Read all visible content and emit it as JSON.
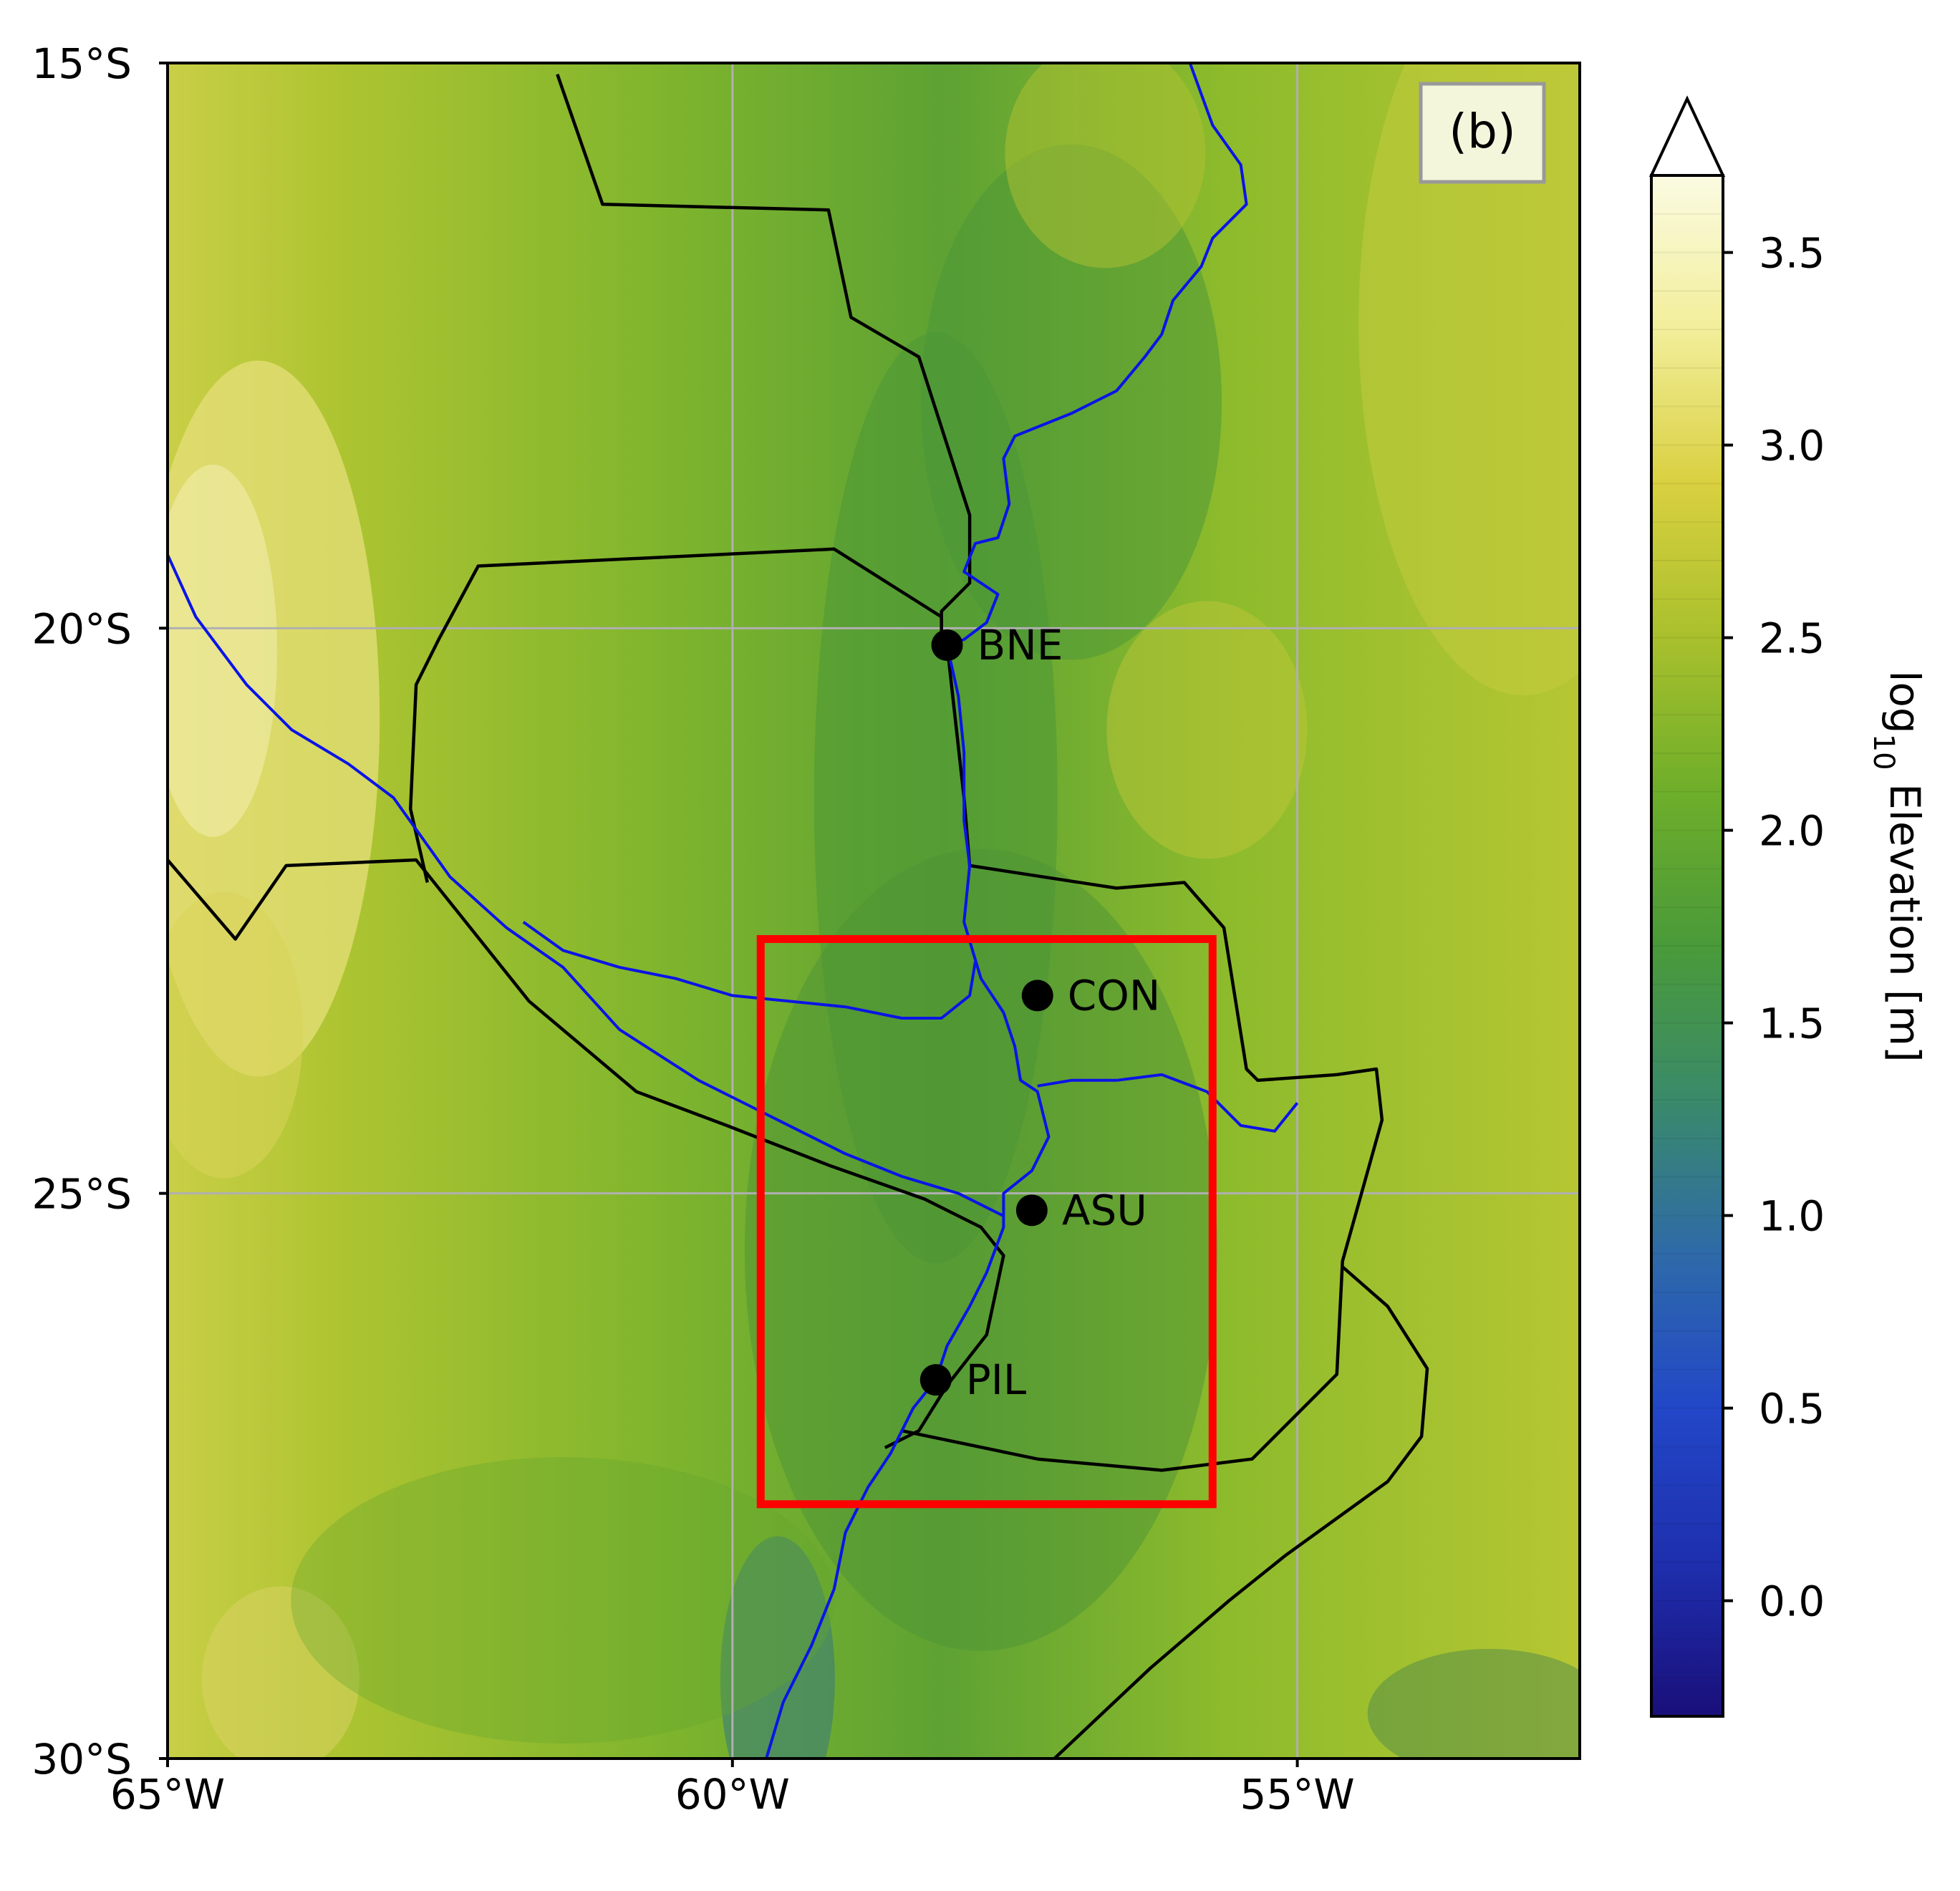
{
  "panel_label": "(b)",
  "map": {
    "lon_range": [
      -65,
      -52.5
    ],
    "lat_range": [
      -30,
      -15
    ],
    "lat_ticks": [
      {
        "value": -15,
        "label": "15°S"
      },
      {
        "value": -20,
        "label": "20°S"
      },
      {
        "value": -25,
        "label": "25°S"
      },
      {
        "value": -30,
        "label": "30°S"
      }
    ],
    "lon_ticks": [
      {
        "value": -65,
        "label": "65°W"
      },
      {
        "value": -60,
        "label": "60°W"
      },
      {
        "value": -55,
        "label": "55°W"
      }
    ],
    "grid": true,
    "grid_color": "#b0b0b0"
  },
  "stations": [
    {
      "id": "BNE",
      "label": "BNE",
      "lon": -58.1,
      "lat": -20.15
    },
    {
      "id": "CON",
      "label": "CON",
      "lon": -57.3,
      "lat": -23.25
    },
    {
      "id": "ASU",
      "label": "ASU",
      "lon": -57.35,
      "lat": -25.15
    },
    {
      "id": "PIL",
      "label": "PIL",
      "lon": -58.2,
      "lat": -26.65
    }
  ],
  "region_box": {
    "lon_min": -59.75,
    "lon_max": -55.75,
    "lat_min": -27.75,
    "lat_max": -22.75,
    "color": "#ff0000"
  },
  "borders": [
    [
      [
        -61.55,
        -15.1
      ],
      [
        -61.15,
        -16.25
      ],
      [
        -59.15,
        -16.3
      ],
      [
        -58.95,
        -17.25
      ],
      [
        -58.35,
        -17.6
      ],
      [
        -57.9,
        -19.0
      ],
      [
        -57.9,
        -19.6
      ],
      [
        -58.15,
        -19.85
      ],
      [
        -58.15,
        -20.15
      ]
    ],
    [
      [
        -58.1,
        -20.15
      ],
      [
        -57.95,
        -21.5
      ],
      [
        -57.9,
        -22.1
      ],
      [
        -56.6,
        -22.3
      ],
      [
        -56.0,
        -22.25
      ],
      [
        -55.65,
        -22.65
      ],
      [
        -55.45,
        -23.9
      ],
      [
        -55.35,
        -24.0
      ],
      [
        -54.65,
        -23.95
      ],
      [
        -54.3,
        -23.9
      ],
      [
        -54.25,
        -24.35
      ],
      [
        -54.6,
        -25.6
      ],
      [
        -54.65,
        -26.6
      ],
      [
        -55.4,
        -27.35
      ],
      [
        -56.2,
        -27.45
      ],
      [
        -57.3,
        -27.35
      ],
      [
        -58.5,
        -27.1
      ]
    ],
    [
      [
        -65,
        -22.05
      ],
      [
        -64.4,
        -22.75
      ],
      [
        -63.95,
        -22.1
      ],
      [
        -62.8,
        -22.05
      ],
      [
        -61.8,
        -23.3
      ],
      [
        -60.85,
        -24.1
      ],
      [
        -60.05,
        -24.4
      ],
      [
        -59.15,
        -24.75
      ],
      [
        -58.3,
        -25.05
      ],
      [
        -57.8,
        -25.3
      ],
      [
        -57.6,
        -25.55
      ],
      [
        -57.75,
        -26.25
      ],
      [
        -58.1,
        -26.7
      ],
      [
        -58.35,
        -27.1
      ],
      [
        -58.65,
        -27.25
      ]
    ],
    [
      [
        -58.15,
        -20.15
      ],
      [
        -58.15,
        -19.9
      ],
      [
        -59.1,
        -19.3
      ],
      [
        -62.25,
        -19.45
      ],
      [
        -62.6,
        -20.1
      ],
      [
        -62.8,
        -20.5
      ],
      [
        -62.85,
        -21.6
      ],
      [
        -62.7,
        -22.25
      ]
    ],
    [
      [
        -57.15,
        -30.0
      ],
      [
        -56.3,
        -29.2
      ],
      [
        -55.6,
        -28.6
      ],
      [
        -55.1,
        -28.2
      ],
      [
        -54.2,
        -27.55
      ],
      [
        -53.9,
        -27.15
      ],
      [
        -53.85,
        -26.55
      ],
      [
        -54.2,
        -26.0
      ],
      [
        -54.6,
        -25.65
      ]
    ]
  ],
  "rivers": [
    [
      [
        -55.95,
        -15.0
      ],
      [
        -55.75,
        -15.55
      ],
      [
        -55.5,
        -15.9
      ],
      [
        -55.45,
        -16.25
      ],
      [
        -55.75,
        -16.55
      ],
      [
        -55.85,
        -16.8
      ],
      [
        -56.1,
        -17.1
      ],
      [
        -56.2,
        -17.4
      ],
      [
        -56.35,
        -17.6
      ],
      [
        -56.6,
        -17.9
      ],
      [
        -57.0,
        -18.1
      ],
      [
        -57.5,
        -18.3
      ],
      [
        -57.6,
        -18.5
      ],
      [
        -57.55,
        -18.9
      ],
      [
        -57.65,
        -19.2
      ],
      [
        -57.85,
        -19.25
      ],
      [
        -57.95,
        -19.5
      ],
      [
        -57.65,
        -19.7
      ],
      [
        -57.75,
        -19.95
      ],
      [
        -57.95,
        -20.1
      ],
      [
        -58.1,
        -20.15
      ],
      [
        -58.0,
        -20.6
      ],
      [
        -57.95,
        -21.1
      ],
      [
        -57.95,
        -21.7
      ],
      [
        -57.9,
        -22.1
      ],
      [
        -57.95,
        -22.6
      ],
      [
        -57.8,
        -23.1
      ],
      [
        -57.6,
        -23.4
      ],
      [
        -57.5,
        -23.7
      ],
      [
        -57.45,
        -24.0
      ],
      [
        -57.3,
        -24.1
      ],
      [
        -57.2,
        -24.5
      ],
      [
        -57.35,
        -24.8
      ],
      [
        -57.6,
        -25.0
      ],
      [
        -57.6,
        -25.3
      ],
      [
        -57.75,
        -25.7
      ],
      [
        -57.9,
        -26.0
      ],
      [
        -58.1,
        -26.35
      ],
      [
        -58.2,
        -26.65
      ],
      [
        -58.4,
        -26.9
      ],
      [
        -58.6,
        -27.3
      ],
      [
        -58.8,
        -27.6
      ],
      [
        -59.0,
        -28.0
      ],
      [
        -59.1,
        -28.5
      ],
      [
        -59.3,
        -29.0
      ],
      [
        -59.55,
        -29.5
      ],
      [
        -59.7,
        -30.0
      ]
    ],
    [
      [
        -65,
        -19.35
      ],
      [
        -64.75,
        -19.9
      ],
      [
        -64.3,
        -20.5
      ],
      [
        -63.9,
        -20.9
      ],
      [
        -63.4,
        -21.2
      ],
      [
        -63.0,
        -21.5
      ],
      [
        -62.5,
        -22.2
      ],
      [
        -62.0,
        -22.65
      ],
      [
        -61.5,
        -23.0
      ],
      [
        -61.0,
        -23.55
      ],
      [
        -60.3,
        -24.0
      ],
      [
        -59.5,
        -24.4
      ],
      [
        -59.0,
        -24.65
      ],
      [
        -58.5,
        -24.85
      ],
      [
        -58.0,
        -25.0
      ],
      [
        -57.6,
        -25.2
      ]
    ],
    [
      [
        -61.85,
        -22.6
      ],
      [
        -61.5,
        -22.85
      ],
      [
        -61.0,
        -23.0
      ],
      [
        -60.5,
        -23.1
      ],
      [
        -60.0,
        -23.25
      ],
      [
        -59.5,
        -23.3
      ],
      [
        -59.0,
        -23.35
      ],
      [
        -58.5,
        -23.45
      ],
      [
        -58.15,
        -23.45
      ],
      [
        -57.9,
        -23.25
      ],
      [
        -57.85,
        -22.95
      ]
    ],
    [
      [
        -57.3,
        -24.05
      ],
      [
        -57.0,
        -24.0
      ],
      [
        -56.6,
        -24.0
      ],
      [
        -56.2,
        -23.95
      ],
      [
        -55.8,
        -24.1
      ],
      [
        -55.5,
        -24.4
      ],
      [
        -55.2,
        -24.45
      ],
      [
        -55.0,
        -24.2
      ]
    ]
  ],
  "colorbar": {
    "label_main": "log",
    "label_sub": "10",
    "label_rest": " Elevation [m]",
    "vmin": -0.3,
    "vmax": 3.7,
    "extend": "max",
    "ticks": [
      {
        "value": 0.0,
        "label": "0.0"
      },
      {
        "value": 0.5,
        "label": "0.5"
      },
      {
        "value": 1.0,
        "label": "1.0"
      },
      {
        "value": 1.5,
        "label": "1.5"
      },
      {
        "value": 2.0,
        "label": "2.0"
      },
      {
        "value": 2.5,
        "label": "2.5"
      },
      {
        "value": 3.0,
        "label": "3.0"
      },
      {
        "value": 3.5,
        "label": "3.5"
      }
    ],
    "colors": [
      "#1a0f7a",
      "#1e2fae",
      "#2247c8",
      "#2e6aa8",
      "#3a8a6a",
      "#4a9a3a",
      "#6eae2a",
      "#a9c02c",
      "#d9d040",
      "#f2ee9a",
      "#fbfbe2"
    ]
  }
}
